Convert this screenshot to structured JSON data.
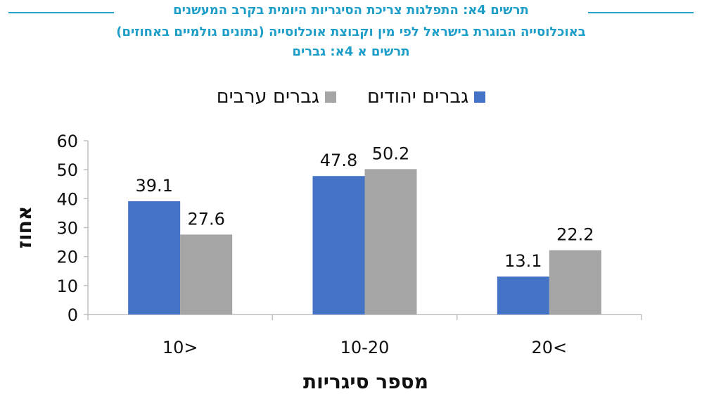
{
  "header": {
    "line1": "תרשים 4א: התפלגות צריכת הסיגריות היומית בקרב המעשנים",
    "line2": "באוכלוסייה הבוגרת בישראל לפי מין וקבוצת אוכלוסייה (נתונים גולמיים באחוזים)",
    "line3": "תרשים א 4א: גברים",
    "rule_color": "#2aa3c9",
    "title_color": "#1d9ec9"
  },
  "chart_data": {
    "type": "bar",
    "categories": [
      "10>",
      "10-20",
      "20<"
    ],
    "series": [
      {
        "name": "גברים יהודים",
        "color": "#4472c4",
        "values": [
          39.1,
          47.8,
          13.1
        ]
      },
      {
        "name": "גברים ערבים",
        "color": "#a5a5a5",
        "values": [
          27.6,
          50.2,
          22.2
        ]
      }
    ],
    "ylabel": "אחוז",
    "xlabel": "מספר סיגריות",
    "ylim": [
      0,
      60
    ],
    "yticks": [
      "0",
      "10",
      "20",
      "30",
      "40",
      "50",
      "60"
    ],
    "legend_position": "top-center",
    "grid": false,
    "data_labels": true
  }
}
